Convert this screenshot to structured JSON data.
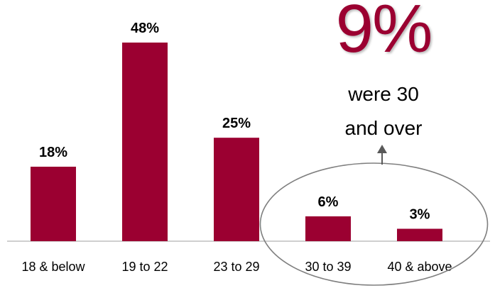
{
  "colors": {
    "bar": "#9b0031",
    "accent": "#9b0031",
    "axis": "#bfbfbf",
    "text": "#000000",
    "ellipse": "#7f7f7f",
    "arrow": "#595959"
  },
  "callout": {
    "big_number": "9%",
    "line1": "were 30",
    "line2": "and over"
  },
  "chart_data": {
    "type": "bar",
    "title": "",
    "xlabel": "",
    "ylabel": "",
    "categories": [
      "18 & below",
      "19 to 22",
      "23 to 29",
      "30 to 39",
      "40 & above"
    ],
    "values": [
      18,
      48,
      25,
      6,
      3
    ],
    "value_labels": [
      "18%",
      "48%",
      "25%",
      "6%",
      "3%"
    ],
    "unit": "%",
    "ylim": [
      0,
      48
    ],
    "grid": false,
    "legend": "none",
    "highlighted_categories": [
      "30 to 39",
      "40 & above"
    ]
  }
}
